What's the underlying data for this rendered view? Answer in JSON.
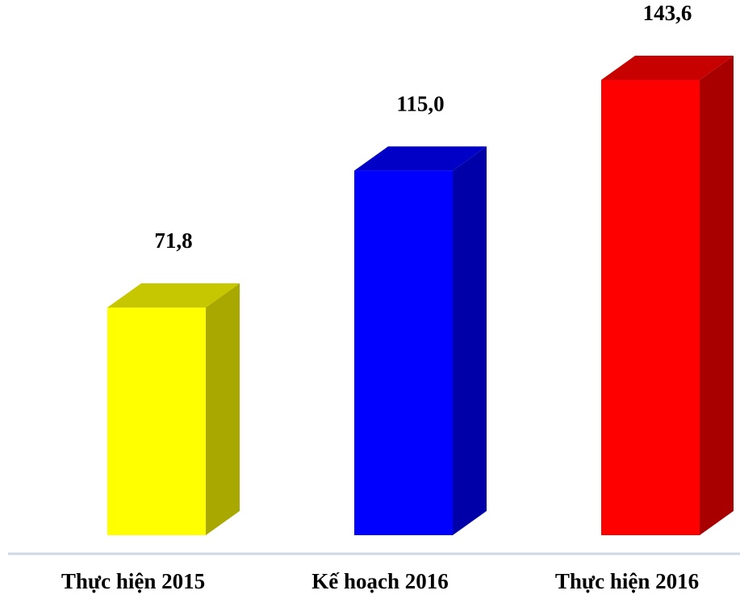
{
  "chart_data": {
    "type": "bar3d",
    "categories": [
      "Thực hiện 2015",
      "Kế hoạch 2016",
      "Thực hiện 2016"
    ],
    "values": [
      71.8,
      115.0,
      143.6
    ],
    "value_labels": [
      "71,8",
      "115,0",
      "143,6"
    ],
    "colors": [
      "#ffff00",
      "#0000ff",
      "#ff0000"
    ]
  }
}
